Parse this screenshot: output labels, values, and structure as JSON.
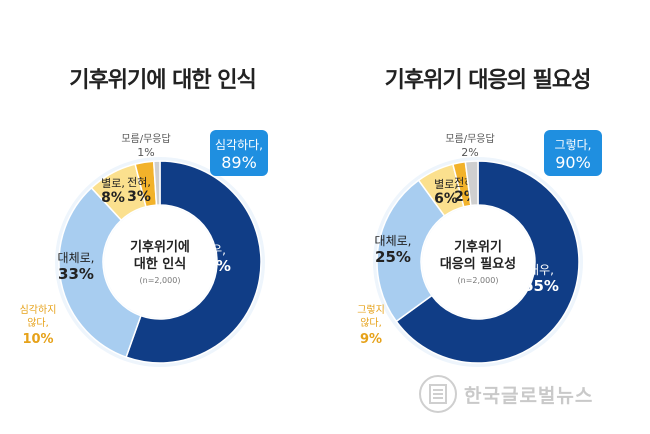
{
  "chart_data": [
    {
      "type": "pie",
      "title": "기후위기에 대한 인식",
      "center_title": [
        "기후위기에",
        "대한 인식"
      ],
      "center_note": "(n=2,000)",
      "slices": [
        {
          "label": "매우,",
          "value": 56,
          "color": "#103d86"
        },
        {
          "label": "대체로,",
          "value": 33,
          "color": "#a8cdf0"
        },
        {
          "label": "별로,",
          "value": 8,
          "color": "#fbe08e"
        },
        {
          "label": "전혀,",
          "value": 3,
          "color": "#f2b22a"
        },
        {
          "label": "모름/무응답",
          "value": 1,
          "color": "#cfcfcf"
        }
      ],
      "callout_positive": {
        "label": "심각하다,",
        "value": "89%"
      },
      "callout_negative": {
        "label": [
          "심각하지",
          "않다,"
        ],
        "value": "10%"
      }
    },
    {
      "type": "pie",
      "title": "기후위기 대응의 필요성",
      "center_title": [
        "기후위기",
        "대응의 필요성"
      ],
      "center_note": "(n=2,000)",
      "slices": [
        {
          "label": "매우,",
          "value": 65,
          "color": "#103d86"
        },
        {
          "label": "대체로,",
          "value": 25,
          "color": "#a8cdf0"
        },
        {
          "label": "별로,",
          "value": 6,
          "color": "#fbe08e"
        },
        {
          "label": "전혀,",
          "value": 2,
          "color": "#f2b22a"
        },
        {
          "label": "모름/무응답",
          "value": 2,
          "color": "#cfcfcf"
        }
      ],
      "callout_positive": {
        "label": "그렇다,",
        "value": "90%"
      },
      "callout_negative": {
        "label": [
          "그렇지",
          "않다,"
        ],
        "value": "9%"
      }
    }
  ],
  "colors": {
    "callout_box": "#1f8fe0",
    "negative_text": "#e6a21a",
    "dark_text": "#222222",
    "light_text": "#ffffff"
  },
  "watermark": {
    "text": "한국글로벌뉴스"
  }
}
